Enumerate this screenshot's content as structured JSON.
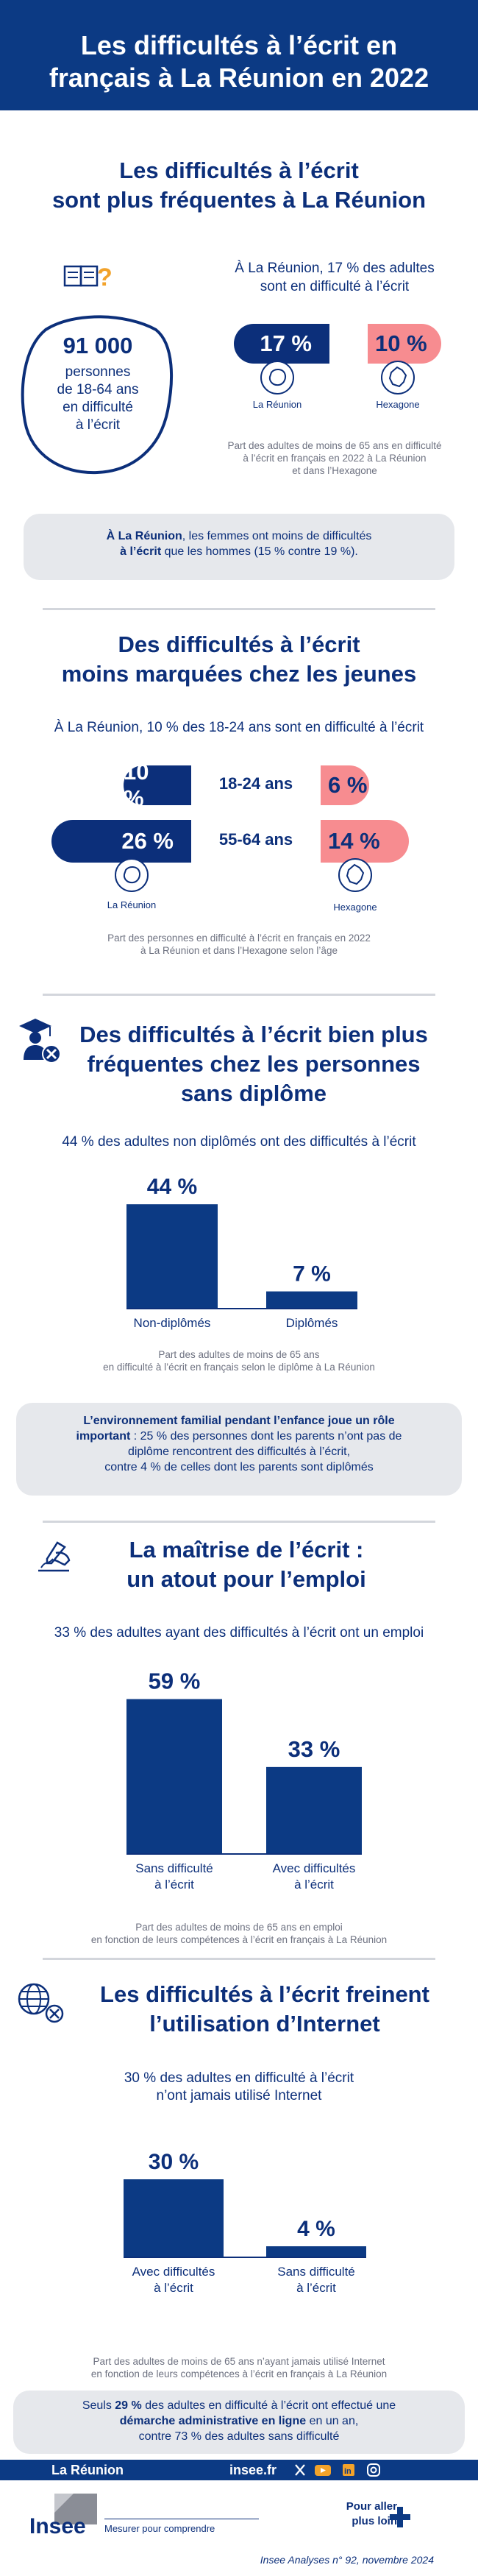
{
  "header": {
    "title_line1": "Les difficultés à l’écrit en",
    "title_line2": "français à La Réunion en 2022"
  },
  "section1": {
    "title_line1": "Les difficultés à l’écrit",
    "title_line2": "sont plus fréquentes à La Réunion",
    "count_value": "91 000",
    "count_line1": "personnes",
    "count_line2": "de 18-64 ans",
    "count_line3": "en difficulté",
    "count_line4": "à l’écrit",
    "lead_line1": "À La Réunion, 17 % des adultes",
    "lead_line2": "sont en difficulté à l’écrit",
    "reunion_value": "17 %",
    "hexagone_value": "10 %",
    "reunion_label": "La Réunion",
    "hexagone_label": "Hexagone",
    "source_line1": "Part des adultes de moins de 65 ans en difficulté",
    "source_line2": "à l’écrit en français en 2022 à La Réunion",
    "source_line3": "et dans l’Hexagone",
    "note_bold1": "À La Réunion",
    "note_text1": ", les femmes ont moins de difficultés",
    "note_bold2": "à l’écrit",
    "note_text2": " que les hommes (15 % contre 19 %)."
  },
  "section2": {
    "title_line1": "Des difficultés à l’écrit",
    "title_line2": "moins marquées chez les jeunes",
    "lead": "À La Réunion, 10 % des 18-24 ans sont en difficulté à l’écrit",
    "rows": [
      {
        "age": "18-24 ans",
        "reunion": "10 %",
        "hexagone": "6 %",
        "reunion_pct": 10,
        "hexagone_pct": 6
      },
      {
        "age": "55-64 ans",
        "reunion": "26 %",
        "hexagone": "14 %",
        "reunion_pct": 26,
        "hexagone_pct": 14
      }
    ],
    "reunion_label": "La Réunion",
    "hexagone_label": "Hexagone",
    "source_line1": "Part des personnes en difficulté à l’écrit en français en 2022",
    "source_line2": "à La Réunion et dans l’Hexagone selon l’âge"
  },
  "section3": {
    "title_line1": "Des difficultés à l’écrit bien plus",
    "title_line2": "fréquentes chez les personnes",
    "title_line3": "sans diplôme",
    "lead": "44 % des adultes non diplômés ont des difficultés à l’écrit",
    "chart_data": {
      "type": "bar",
      "categories": [
        "Non-diplômés",
        "Diplômés"
      ],
      "values": [
        44,
        7
      ],
      "value_labels": [
        "44 %",
        "7 %"
      ],
      "unit": "%"
    },
    "source_line1": "Part des adultes de moins de 65 ans",
    "source_line2": "en difficulté à l’écrit en français selon le diplôme à La Réunion",
    "note_bold1": "L’environnement familial pendant l’enfance joue un rôle",
    "note_bold2": "important",
    "note_text2": " : 25 % des personnes dont les parents n’ont pas de",
    "note_text3": "diplôme rencontrent des difficultés à l’écrit,",
    "note_text4": "contre 4 % de celles dont les parents sont diplômés"
  },
  "section4": {
    "title_line1": "La maîtrise de l’écrit :",
    "title_line2": "un atout pour l’emploi",
    "lead": "33 % des adultes ayant des difficultés à l’écrit ont un emploi",
    "chart_data": {
      "type": "bar",
      "categories": [
        "Sans difficulté à l’écrit",
        "Avec difficultés à l’écrit"
      ],
      "category_lines": [
        [
          "Sans difficulté",
          "à l’écrit"
        ],
        [
          "Avec difficultés",
          "à l’écrit"
        ]
      ],
      "values": [
        59,
        33
      ],
      "value_labels": [
        "59 %",
        "33 %"
      ],
      "unit": "%"
    },
    "source_line1": "Part des adultes de moins de 65 ans en emploi",
    "source_line2": "en fonction de leurs compétences à l’écrit en français à La Réunion"
  },
  "section5": {
    "title_line1": "Les difficultés à l’écrit freinent",
    "title_line2": "l’utilisation d’Internet",
    "lead_line1": "30 % des adultes en difficulté à l’écrit",
    "lead_line2": "n’ont jamais utilisé Internet",
    "chart_data": {
      "type": "bar",
      "categories": [
        "Avec difficultés à l’écrit",
        "Sans difficulté à l’écrit"
      ],
      "category_lines": [
        [
          "Avec difficultés",
          "à l’écrit"
        ],
        [
          "Sans difficulté",
          "à l’écrit"
        ]
      ],
      "values": [
        30,
        4
      ],
      "value_labels": [
        "30 %",
        "4 %"
      ],
      "unit": "%"
    },
    "source_line1": "Part des adultes de moins de 65 ans  n’ayant jamais utilisé Internet",
    "source_line2": "en fonction de leurs compétences à l’écrit en français à La Réunion",
    "note_text1": "Seuls ",
    "note_bold1": "29 %",
    "note_text1b": " des adultes en difficulté à l’écrit ont effectué une",
    "note_bold2": "démarche administrative en ligne",
    "note_text2": " en un an,",
    "note_text3": "contre 73 % des adultes sans difficulté"
  },
  "footer": {
    "region": "La Réunion",
    "site": "insee.fr",
    "social": [
      "x-icon",
      "youtube-icon",
      "linkedin-icon",
      "instagram-icon"
    ],
    "more_line1": "Pour aller",
    "more_line2": "plus loin",
    "logo_text": "Insee",
    "tagline": "Mesurer pour comprendre",
    "publication": "Insee Analyses n° 92, novembre 2024"
  },
  "colors": {
    "navy": "#0c2f7a",
    "pink": "#f78c90",
    "grey_box": "#e6e8ec",
    "accent_orange": "#f2a22a"
  }
}
